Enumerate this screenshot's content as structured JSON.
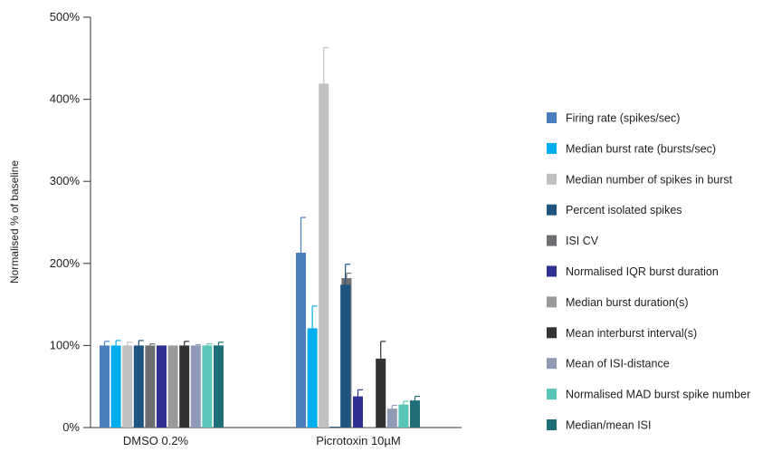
{
  "chart_data": {
    "type": "bar",
    "title": "",
    "xlabel": "",
    "ylabel": "Normalised % of baseline",
    "ylim": [
      0,
      500
    ],
    "yticks": [
      0,
      100,
      200,
      300,
      400,
      500
    ],
    "ytick_labels": [
      "0%",
      "100%",
      "200%",
      "300%",
      "400%",
      "500%"
    ],
    "categories": [
      "DMSO 0.2%",
      "Picrotoxin 10µM"
    ],
    "grid": false,
    "legend_position": "right",
    "series": [
      {
        "name": "Firing rate (spikes/sec)",
        "color": "#4a7ebf",
        "values": [
          100,
          213
        ],
        "errors": [
          5,
          43
        ]
      },
      {
        "name": "Median burst rate (bursts/sec)",
        "color": "#00aeef",
        "values": [
          100,
          121
        ],
        "errors": [
          6,
          27
        ]
      },
      {
        "name": "Median number of spikes in burst",
        "color": "#c0c0c0",
        "values": [
          100,
          419
        ],
        "errors": [
          4,
          44
        ]
      },
      {
        "name": "Percent isolated spikes",
        "color": "#1e5480",
        "values": [
          100,
          1
        ],
        "errors": [
          6,
          0
        ]
      },
      {
        "name": "ISI CV",
        "color": "#6d6e71",
        "values": [
          100,
          182
        ],
        "errors": [
          2,
          6
        ]
      },
      {
        "name": "Normalised IQR burst duration",
        "color": "#2e3192",
        "values": [
          100,
          38
        ],
        "errors": [
          0,
          8
        ]
      },
      {
        "name": "Median burst duration(s)",
        "color": "#9a9a9a",
        "values": [
          100,
          0
        ],
        "errors": [
          0,
          0
        ]
      },
      {
        "name": "Mean interburst interval(s)",
        "color": "#333333",
        "values": [
          100,
          84
        ],
        "errors": [
          5,
          21
        ]
      },
      {
        "name": "Mean of ISI-distance",
        "color": "#8f9ab5",
        "values": [
          100,
          23
        ],
        "errors": [
          1,
          4
        ]
      },
      {
        "name": "Normalised MAD burst spike number",
        "color": "#59c4b8",
        "values": [
          100,
          28
        ],
        "errors": [
          2,
          4
        ]
      },
      {
        "name": "Median/mean ISI",
        "color": "#1f6f78",
        "values": [
          100,
          33
        ],
        "errors": [
          4,
          5
        ]
      }
    ],
    "extra_bars": [
      {
        "category": 1,
        "x_offset_slots": 3.9,
        "color": "#1e5480",
        "value": 174,
        "error": 25
      }
    ]
  }
}
